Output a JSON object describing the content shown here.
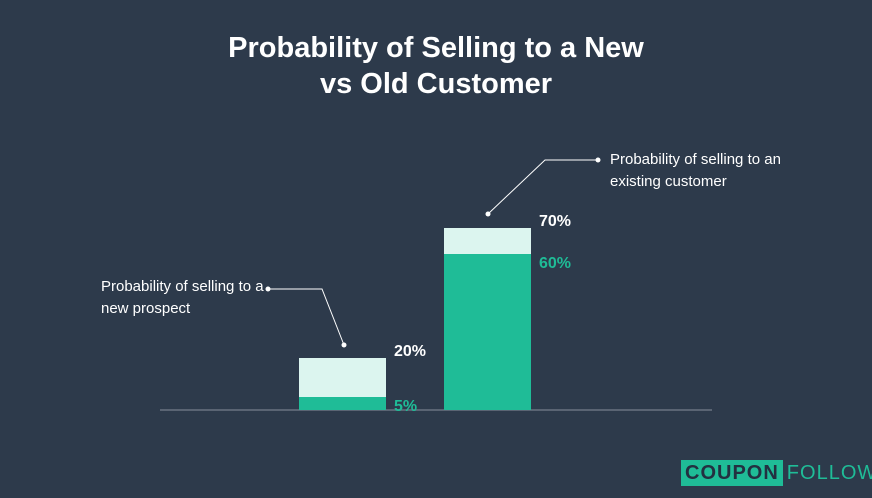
{
  "chart_data": {
    "type": "bar",
    "title": "Probability of Selling to a New vs Old Customer",
    "annotations": [
      "Probability of selling to a new prospect",
      "Probability of selling to an existing customer"
    ],
    "series": [
      {
        "color": "#dcf5ef",
        "values": [
          20,
          70
        ],
        "value_labels": [
          "20%",
          "70%"
        ],
        "label_color": "#ffffff"
      },
      {
        "color": "#1fbc97",
        "values": [
          5,
          60
        ],
        "value_labels": [
          "5%",
          "60%"
        ],
        "label_color": "#1fbc97"
      }
    ],
    "ylim": [
      0,
      100
    ]
  },
  "brand": {
    "left": "COUPON",
    "right": "FOLLOW"
  }
}
